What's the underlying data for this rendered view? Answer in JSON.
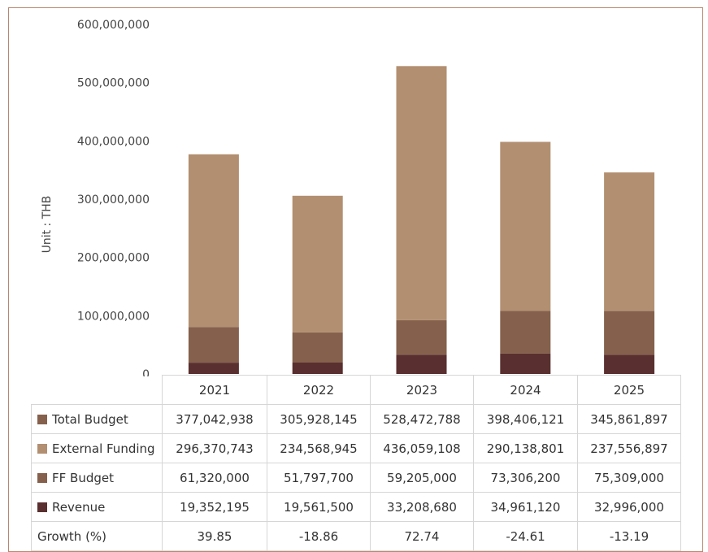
{
  "chart_data": {
    "type": "bar",
    "stacked": true,
    "ylabel": "Unit : THB",
    "ylim": [
      0,
      600000000
    ],
    "yticks": [
      {
        "value": 0,
        "label": "0"
      },
      {
        "value": 100000000,
        "label": "100,000,000"
      },
      {
        "value": 200000000,
        "label": "200,000,000"
      },
      {
        "value": 300000000,
        "label": "300,000,000"
      },
      {
        "value": 400000000,
        "label": "400,000,000"
      },
      {
        "value": 500000000,
        "label": "500,000,000"
      },
      {
        "value": 600000000,
        "label": "600,000,000"
      }
    ],
    "categories": [
      "2021",
      "2022",
      "2023",
      "2024",
      "2025"
    ],
    "stacked_series": [
      {
        "name": "Revenue",
        "color": "#5a2f2f",
        "values": [
          19352195,
          19561500,
          33208680,
          34961120,
          32996000
        ]
      },
      {
        "name": "FF Budget",
        "color": "#85604c",
        "values": [
          61320000,
          51797700,
          59205000,
          73306200,
          75309000
        ]
      },
      {
        "name": "External Funding",
        "color": "#b28f71",
        "values": [
          296370743,
          234568945,
          436059108,
          290138801,
          237556897
        ]
      }
    ],
    "gridlines": false
  },
  "table": {
    "header": [
      "2021",
      "2022",
      "2023",
      "2024",
      "2025"
    ],
    "rows": [
      {
        "label": "Total Budget",
        "swatch": "#85604c",
        "cells": [
          "377,042,938",
          "305,928,145",
          "528,472,788",
          "398,406,121",
          "345,861,897"
        ]
      },
      {
        "label": "External Funding",
        "swatch": "#b28f71",
        "cells": [
          "296,370,743",
          "234,568,945",
          "436,059,108",
          "290,138,801",
          "237,556,897"
        ]
      },
      {
        "label": "FF Budget",
        "swatch": "#85604c",
        "cells": [
          "61,320,000",
          "51,797,700",
          "59,205,000",
          "73,306,200",
          "75,309,000"
        ]
      },
      {
        "label": "Revenue",
        "swatch": "#5a2f2f",
        "cells": [
          "19,352,195",
          "19,561,500",
          "33,208,680",
          "34,961,120",
          "32,996,000"
        ]
      },
      {
        "label": "Growth (%)",
        "swatch": null,
        "cells": [
          "39.85",
          "-18.86",
          "72.74",
          "-24.61",
          "-13.19"
        ]
      }
    ]
  }
}
